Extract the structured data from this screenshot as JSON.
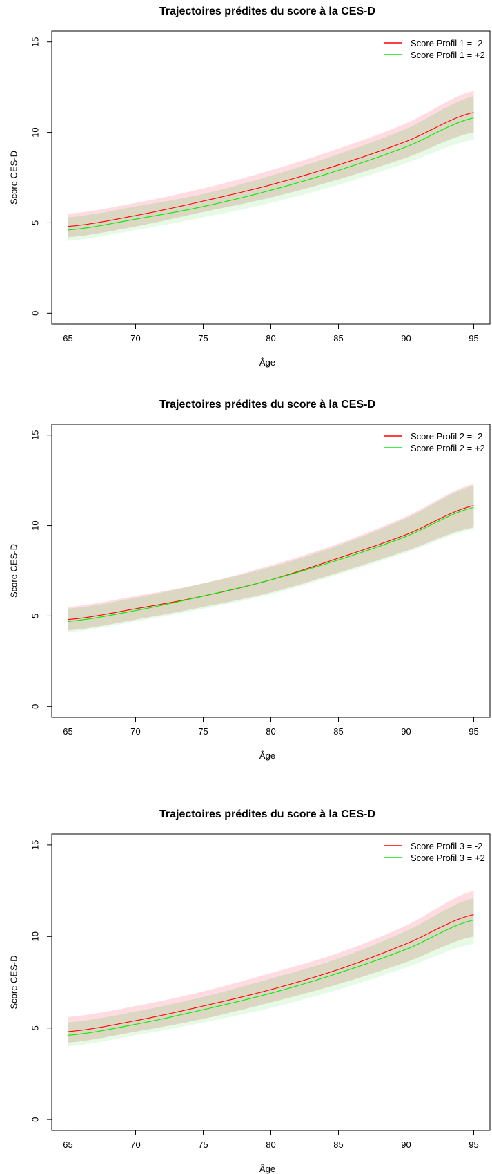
{
  "chart_data": [
    {
      "type": "line",
      "title": "Trajectoires prédites du score à la CES-D",
      "xlabel": "Âge",
      "ylabel": "Score CES-D",
      "xlim": [
        65,
        95
      ],
      "ylim": [
        0,
        15
      ],
      "xticks": [
        65,
        70,
        75,
        80,
        85,
        90,
        95
      ],
      "yticks": [
        0,
        5,
        10,
        15
      ],
      "legend": "top-right",
      "grid": false,
      "x": [
        65,
        70,
        75,
        80,
        85,
        90,
        95
      ],
      "series": [
        {
          "name": "Score Profil 1 = -2",
          "color": "#ff0000",
          "band_color": "#ffc0cb",
          "values": [
            4.8,
            5.4,
            6.2,
            7.1,
            8.2,
            9.5,
            11.1
          ],
          "lower": [
            4.2,
            4.8,
            5.6,
            6.4,
            7.4,
            8.6,
            10.0
          ],
          "upper": [
            5.5,
            6.1,
            6.9,
            7.9,
            9.1,
            10.5,
            12.3
          ]
        },
        {
          "name": "Score Profil 1 = +2",
          "color": "#00ee00",
          "band_color": "#c8f5c8",
          "values": [
            4.6,
            5.2,
            5.9,
            6.8,
            7.9,
            9.2,
            10.8
          ],
          "lower": [
            4.0,
            4.6,
            5.3,
            6.1,
            7.1,
            8.3,
            9.6
          ],
          "upper": [
            5.3,
            5.9,
            6.6,
            7.6,
            8.8,
            10.2,
            12.0
          ]
        }
      ]
    },
    {
      "type": "line",
      "title": "Trajectoires prédites du score à la CES-D",
      "xlabel": "Âge",
      "ylabel": "Score CES-D",
      "xlim": [
        65,
        95
      ],
      "ylim": [
        0,
        15
      ],
      "xticks": [
        65,
        70,
        75,
        80,
        85,
        90,
        95
      ],
      "yticks": [
        0,
        5,
        10,
        15
      ],
      "legend": "top-right",
      "grid": false,
      "x": [
        65,
        70,
        75,
        80,
        85,
        90,
        95
      ],
      "series": [
        {
          "name": "Score Profil 2 = -2",
          "color": "#ff0000",
          "band_color": "#ffc0cb",
          "values": [
            4.8,
            5.4,
            6.1,
            7.0,
            8.2,
            9.5,
            11.1
          ],
          "lower": [
            4.2,
            4.8,
            5.5,
            6.3,
            7.4,
            8.6,
            9.9
          ],
          "upper": [
            5.5,
            6.1,
            6.8,
            7.8,
            9.0,
            10.5,
            12.3
          ]
        },
        {
          "name": "Score Profil 2 = +2",
          "color": "#00ee00",
          "band_color": "#c8f5c8",
          "values": [
            4.7,
            5.3,
            6.1,
            7.0,
            8.1,
            9.4,
            11.0
          ],
          "lower": [
            4.1,
            4.7,
            5.4,
            6.2,
            7.3,
            8.5,
            9.8
          ],
          "upper": [
            5.4,
            6.0,
            6.8,
            7.7,
            8.9,
            10.4,
            12.2
          ]
        }
      ]
    },
    {
      "type": "line",
      "title": "Trajectoires prédites du score à la CES-D",
      "xlabel": "Âge",
      "ylabel": "Score CES-D",
      "xlim": [
        65,
        95
      ],
      "ylim": [
        0,
        15
      ],
      "xticks": [
        65,
        70,
        75,
        80,
        85,
        90,
        95
      ],
      "yticks": [
        0,
        5,
        10,
        15
      ],
      "legend": "top-right",
      "grid": false,
      "x": [
        65,
        70,
        75,
        80,
        85,
        90,
        95
      ],
      "series": [
        {
          "name": "Score Profil 3 = -2",
          "color": "#ff0000",
          "band_color": "#ffc0cb",
          "values": [
            4.8,
            5.4,
            6.2,
            7.1,
            8.2,
            9.6,
            11.2
          ],
          "lower": [
            4.2,
            4.8,
            5.5,
            6.4,
            7.4,
            8.6,
            10.0
          ],
          "upper": [
            5.6,
            6.2,
            7.0,
            8.0,
            9.1,
            10.6,
            12.5
          ]
        },
        {
          "name": "Score Profil 3 = +2",
          "color": "#00ee00",
          "band_color": "#c8f5c8",
          "values": [
            4.6,
            5.2,
            6.0,
            6.9,
            8.0,
            9.3,
            10.9
          ],
          "lower": [
            4.0,
            4.6,
            5.3,
            6.1,
            7.1,
            8.3,
            9.6
          ],
          "upper": [
            5.3,
            5.9,
            6.7,
            7.7,
            8.8,
            10.3,
            12.1
          ]
        }
      ]
    }
  ]
}
